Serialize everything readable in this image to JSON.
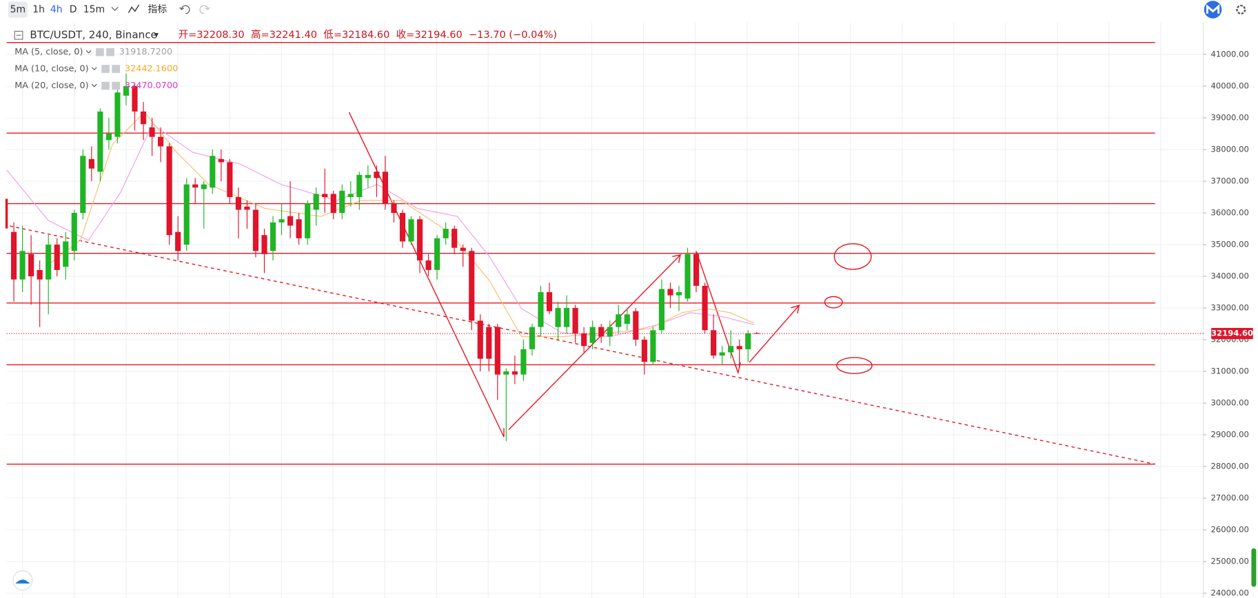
{
  "toolbar": [
    "5m",
    "1h",
    "4h",
    "D",
    "15m",
    "指标"
  ],
  "chart_data": {
    "type": "candlestick",
    "symbol": "BTC/USDT, 240, Binance",
    "ohlc_legend": [
      "开=32208.30",
      "高=32241.40",
      "低=32184.60",
      "收=32194.60",
      "−13.70 (−0.04%)"
    ],
    "indicators": [
      {
        "name": "MA (5, close, 0)",
        "value": "31918.7200",
        "color": "#9e9e9e"
      },
      {
        "name": "MA (10, close, 0)",
        "value": "32442.1600",
        "color": "#f5a623"
      },
      {
        "name": "MA (20, close, 0)",
        "value": "32470.0700",
        "color": "#d63ec8"
      }
    ],
    "up_color": "#1fb525",
    "down_color": "#e0142a",
    "open": [
      35400,
      33900,
      34700,
      34200,
      33900,
      35000,
      34300,
      34800,
      36000,
      37700,
      37300,
      38300,
      38400,
      39700,
      40000,
      39200,
      38700,
      38400,
      38100,
      35400,
      35000,
      36900,
      36750,
      36800,
      37700,
      37600,
      36500,
      36200,
      36100,
      35300,
      34800,
      35700,
      35900,
      35800,
      35200,
      36100,
      36600,
      36600,
      36000,
      36500,
      36500,
      37100,
      37300,
      37300,
      36300,
      36000,
      35100,
      35800,
      34500,
      34200,
      35200,
      35500,
      34900,
      34800,
      32600,
      32400,
      32400,
      30900,
      31000,
      30900,
      31700,
      32400,
      33500,
      32400,
      32400,
      33000,
      32200,
      31900,
      32400,
      32100,
      32400,
      32500,
      32900,
      32000,
      31300,
      32300,
      33600,
      33400,
      33300,
      34700,
      33700,
      32300,
      31500,
      31600,
      31800,
      31700,
      32208.3
    ],
    "high": [
      35700,
      35600,
      35300,
      34500,
      35300,
      35200,
      35400,
      36100,
      38000,
      38100,
      39300,
      39000,
      40100,
      40400,
      40100,
      39500,
      39000,
      38700,
      38200,
      35900,
      37100,
      37100,
      37000,
      38000,
      38000,
      37700,
      36800,
      36400,
      36300,
      35500,
      35900,
      36300,
      37000,
      36000,
      36400,
      36800,
      37400,
      36700,
      36900,
      37000,
      37300,
      37500,
      37500,
      37800,
      36400,
      36100,
      35900,
      35900,
      34700,
      35300,
      35700,
      35600,
      35000,
      34900,
      32800,
      32500,
      32500,
      31100,
      31500,
      32000,
      32500,
      33700,
      33800,
      33200,
      33400,
      33100,
      32400,
      32600,
      32500,
      32600,
      33100,
      33000,
      33000,
      32100,
      32400,
      33900,
      33800,
      33700,
      34900,
      34800,
      33800,
      32800,
      31800,
      32300,
      32000,
      32300,
      32241.4
    ],
    "low": [
      33200,
      33500,
      33100,
      32400,
      32800,
      34000,
      33900,
      34500,
      35800,
      37000,
      37000,
      38000,
      38200,
      39400,
      38600,
      38300,
      37800,
      37600,
      35000,
      34500,
      34800,
      36300,
      35500,
      36600,
      37000,
      36300,
      35200,
      35500,
      34600,
      34100,
      34500,
      35300,
      35200,
      35000,
      35000,
      35600,
      36000,
      35800,
      35800,
      36200,
      36100,
      36800,
      36500,
      36100,
      35700,
      34900,
      35000,
      34100,
      34000,
      33900,
      35000,
      34700,
      34300,
      32300,
      31000,
      31000,
      30100,
      28800,
      30600,
      30700,
      31500,
      32100,
      32800,
      32000,
      32200,
      31900,
      31600,
      31700,
      31900,
      31800,
      32200,
      32300,
      31800,
      30900,
      31200,
      32200,
      33000,
      32900,
      33200,
      33500,
      32200,
      31400,
      31200,
      31400,
      31100,
      31300,
      32184.6
    ],
    "close": [
      33900,
      34800,
      34000,
      33900,
      35000,
      34200,
      35100,
      36000,
      37800,
      37400,
      39200,
      38500,
      39800,
      40000,
      39200,
      38800,
      38400,
      38100,
      35300,
      34800,
      36900,
      36800,
      36900,
      37800,
      37600,
      36500,
      36100,
      36100,
      34800,
      34700,
      35700,
      35800,
      35600,
      35200,
      36300,
      36600,
      36500,
      36000,
      36700,
      36600,
      37200,
      37200,
      37100,
      36300,
      36000,
      35100,
      35800,
      34500,
      34200,
      35200,
      35500,
      34900,
      34800,
      32600,
      31400,
      31400,
      30900,
      31000,
      30900,
      31700,
      32400,
      33500,
      32900,
      33000,
      33000,
      32200,
      31800,
      32400,
      32100,
      32400,
      32800,
      32800,
      32000,
      31300,
      32300,
      33600,
      33400,
      33500,
      34700,
      33700,
      32300,
      31500,
      31600,
      31800,
      31700,
      32200,
      32194.6
    ],
    "last_price": {
      "value": 32194.6,
      "label": "32194.60"
    },
    "ylim": [
      23850,
      42010
    ],
    "yticks": [
      {
        "value": 24000,
        "label": "24000.00"
      },
      {
        "value": 25000,
        "label": "25000.00"
      },
      {
        "value": 26000,
        "label": "26000.00"
      },
      {
        "value": 27000,
        "label": "27000.00"
      },
      {
        "value": 28000,
        "label": "28000.00"
      },
      {
        "value": 29000,
        "label": "29000.00"
      },
      {
        "value": 30000,
        "label": "30000.00"
      },
      {
        "value": 31000,
        "label": "31000.00"
      },
      {
        "value": 32000,
        "label": "32000.00"
      },
      {
        "value": 33000,
        "label": "33000.00"
      },
      {
        "value": 34000,
        "label": "34000.00"
      },
      {
        "value": 35000,
        "label": "35000.00"
      },
      {
        "value": 36000,
        "label": "36000.00"
      },
      {
        "value": 37000,
        "label": "37000.00"
      },
      {
        "value": 38000,
        "label": "38000.00"
      },
      {
        "value": 39000,
        "label": "39000.00"
      },
      {
        "value": 40000,
        "label": "40000.00"
      },
      {
        "value": 41000,
        "label": "41000.00"
      }
    ],
    "grid": true
  }
}
